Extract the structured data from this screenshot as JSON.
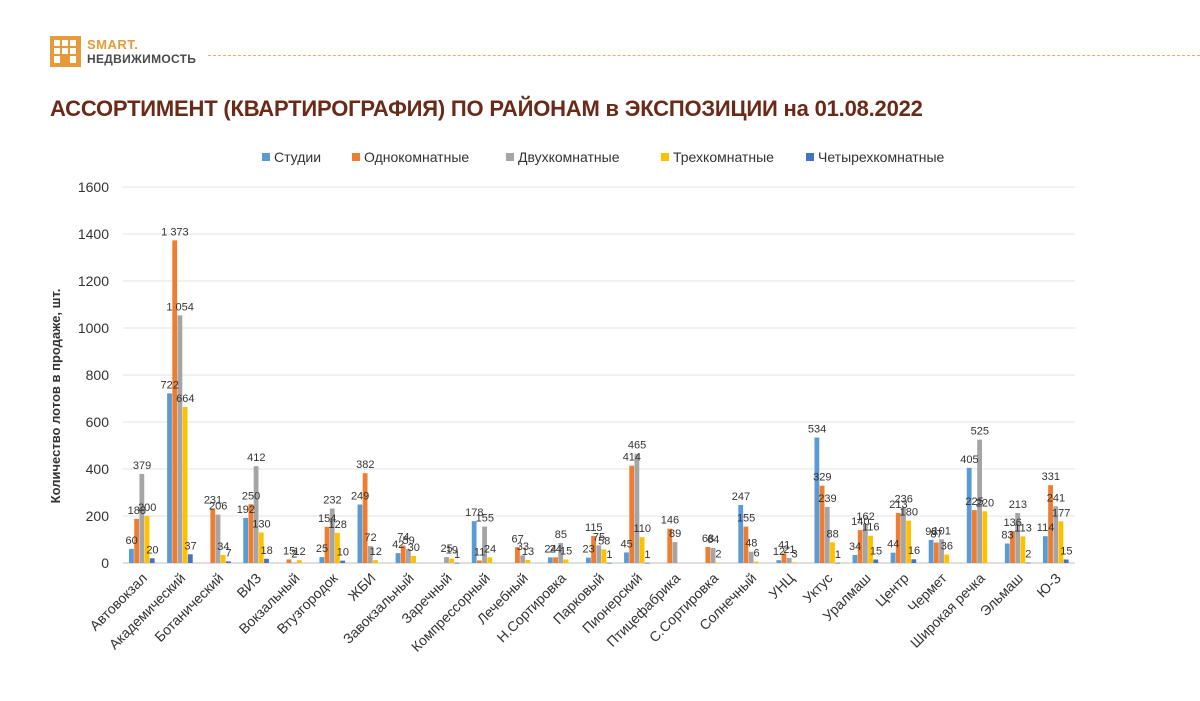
{
  "logo": {
    "line1": "SMART.",
    "line2": "НЕДВИЖИМОСТЬ",
    "color": "#e79a3a"
  },
  "header": {
    "title": "АССОРТИМЕНТ (КВАРТИРОГРАФИЯ) ПО РАЙОНАМ в ЭКСПОЗИЦИИ на 01.08.2022"
  },
  "chart_data": {
    "type": "bar",
    "title": "АССОРТИМЕНТ (КВАРТИРОГРАФИЯ) ПО РАЙОНАМ в ЭКСПОЗИЦИИ на 01.08.2022",
    "xlabel": "",
    "ylabel": "Количество лотов в продаже, шт.",
    "ylim": [
      0,
      1600
    ],
    "yticks": [
      0,
      200,
      400,
      600,
      800,
      1000,
      1200,
      1400,
      1600
    ],
    "grid": true,
    "legend_position": "top",
    "categories": [
      "Автовокзал",
      "Академический",
      "Ботанический",
      "ВИЗ",
      "Вокзальный",
      "Втузгородок",
      "ЖБИ",
      "Завокзальный",
      "Заречный",
      "Компрессорный",
      "Лечебный",
      "Н.Сортировка",
      "Парковый",
      "Пионерский",
      "Птицефабрика",
      "С.Сортировка",
      "Солнечный",
      "УНЦ",
      "Уктус",
      "Уралмаш",
      "Центр",
      "Чермет",
      "Широкая речка",
      "Эльмаш",
      "Ю-З"
    ],
    "series": [
      {
        "name": "Студии",
        "color": "#5b9bd5",
        "values": [
          60,
          722,
          null,
          192,
          null,
          25,
          249,
          42,
          null,
          178,
          null,
          24,
          23,
          45,
          null,
          null,
          247,
          12,
          534,
          34,
          44,
          98,
          405,
          83,
          114
        ],
        "labels": [
          "60",
          "722",
          "",
          "192",
          "",
          "25",
          "249",
          "42",
          "",
          "178",
          "",
          "24",
          "23",
          "45",
          "",
          "",
          "247",
          "12",
          "534",
          "34",
          "44",
          "98",
          "405",
          "83",
          "114"
        ]
      },
      {
        "name": "Однокомнатные",
        "color": "#ed7d31",
        "values": [
          188,
          1373,
          231,
          250,
          15,
          154,
          382,
          74,
          null,
          11,
          67,
          24,
          115,
          414,
          146,
          68,
          155,
          41,
          329,
          140,
          213,
          87,
          225,
          136,
          331
        ],
        "labels": [
          "188",
          "1 373",
          "231",
          "250",
          "15",
          "154",
          "382",
          "74",
          "",
          "11",
          "67",
          "24",
          "115",
          "414",
          "146",
          "68",
          "155",
          "41",
          "329",
          "140",
          "213",
          "87",
          "225",
          "136",
          "331"
        ]
      },
      {
        "name": "Двухкомнатные",
        "color": "#a5a5a5",
        "values": [
          379,
          1054,
          206,
          412,
          2,
          232,
          72,
          59,
          25,
          155,
          33,
          85,
          75,
          465,
          89,
          64,
          48,
          21,
          239,
          162,
          236,
          101,
          525,
          213,
          241
        ],
        "labels": [
          "379",
          "1 054",
          "206",
          "412",
          "2",
          "232",
          "72",
          "59",
          "25",
          "155",
          "33",
          "85",
          "75",
          "465",
          "89",
          "64",
          "48",
          "21",
          "239",
          "162",
          "236",
          "101",
          "525",
          "213",
          "241"
        ]
      },
      {
        "name": "Трехкомнатные",
        "color": "#ffc000",
        "values": [
          200,
          664,
          34,
          130,
          12,
          128,
          12,
          30,
          19,
          24,
          13,
          15,
          58,
          110,
          null,
          2,
          6,
          3,
          88,
          116,
          180,
          36,
          220,
          113,
          177
        ],
        "labels": [
          "200",
          "664",
          "34",
          "130",
          "12",
          "128",
          "12",
          "30",
          "19",
          "24",
          "13",
          "15",
          "58",
          "110",
          "",
          "2",
          "6",
          "3",
          "88",
          "116",
          "180",
          "36",
          "220",
          "113",
          "177"
        ]
      },
      {
        "name": "Четырехкомнатные",
        "color": "#4472c4",
        "values": [
          20,
          37,
          7,
          18,
          null,
          10,
          null,
          null,
          1,
          null,
          null,
          null,
          1,
          1,
          null,
          null,
          null,
          null,
          1,
          15,
          16,
          null,
          null,
          2,
          15
        ],
        "labels": [
          "20",
          "37",
          "7",
          "18",
          "",
          "10",
          "",
          "",
          "1",
          "",
          "",
          "",
          "1",
          "1",
          "",
          "",
          "",
          "",
          "1",
          "15",
          "16",
          "",
          "",
          "2",
          "15"
        ]
      }
    ]
  }
}
